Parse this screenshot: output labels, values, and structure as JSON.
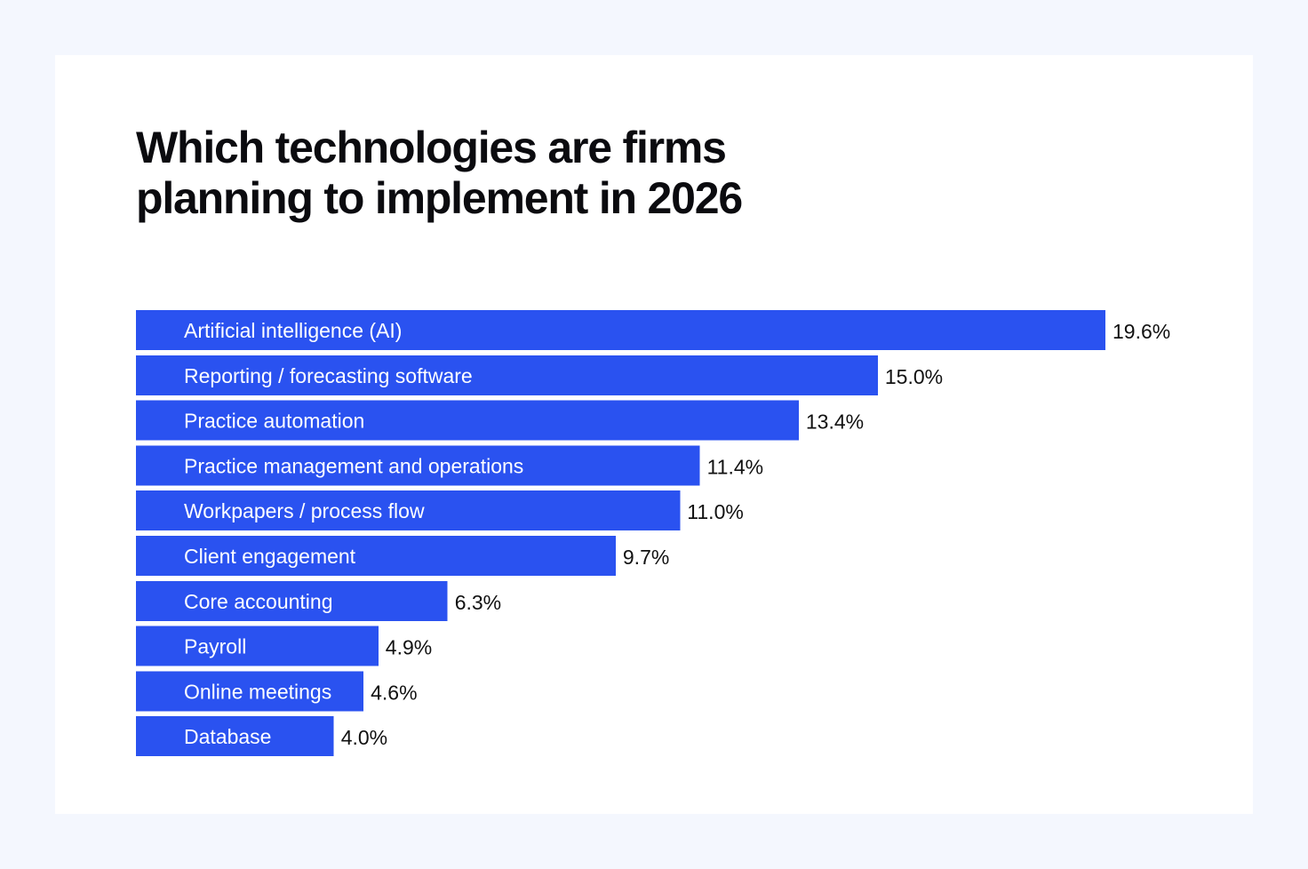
{
  "title_line1": "Which technologies are firms",
  "title_line2": "planning to implement in 2026",
  "colors": {
    "page_background": "#f4f7fe",
    "card_background": "#ffffff",
    "bar": "#2a52f0",
    "bar_text": "#ffffff",
    "value_text": "#111111",
    "title_text": "#0b0b0f"
  },
  "chart_data": {
    "type": "bar",
    "orientation": "horizontal",
    "title": "Which technologies are firms planning to implement in 2026",
    "unit": "%",
    "categories": [
      "Artificial intelligence (AI)",
      "Reporting / forecasting software",
      "Practice automation",
      "Practice management and operations",
      "Workpapers / process flow",
      "Client engagement",
      "Core accounting",
      "Payroll",
      "Online meetings",
      "Database"
    ],
    "values": [
      19.6,
      15.0,
      13.4,
      11.4,
      11.0,
      9.7,
      6.3,
      4.9,
      4.6,
      4.0
    ],
    "value_labels": [
      "19.6%",
      "15.0%",
      "13.4%",
      "11.4%",
      "11.0%",
      "9.7%",
      "6.3%",
      "4.9%",
      "4.6%",
      "4.0%"
    ],
    "xlim": [
      0,
      19.6
    ],
    "grid": false,
    "legend": "none"
  }
}
